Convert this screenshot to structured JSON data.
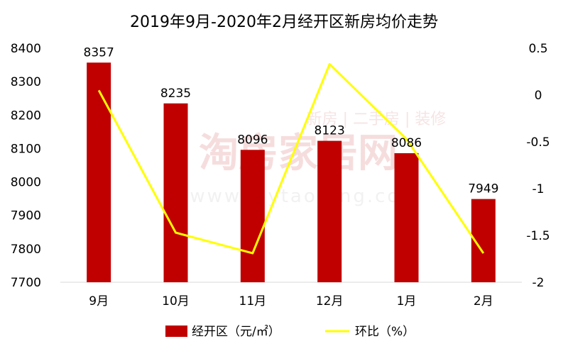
{
  "chart_data": {
    "type": "bar",
    "title": "2019年9月-2020年2月经开区新房均价走势",
    "categories": [
      "9月",
      "10月",
      "11月",
      "12月",
      "1月",
      "2月"
    ],
    "series": [
      {
        "name": "经开区（元/㎡）",
        "type": "bar",
        "axis": "left",
        "color": "#c00000",
        "values": [
          8357,
          8235,
          8096,
          8123,
          8086,
          7949
        ],
        "data_labels": [
          "8357",
          "8235",
          "8096",
          "8123",
          "8086",
          "7949"
        ]
      },
      {
        "name": "环比（%）",
        "type": "line",
        "axis": "right",
        "color": "#ffff00",
        "values": [
          0.05,
          -1.47,
          -1.69,
          0.33,
          -0.47,
          -1.69
        ]
      }
    ],
    "y_left": {
      "ylim": [
        7700,
        8400
      ],
      "ticks": [
        7700,
        7800,
        7900,
        8000,
        8100,
        8200,
        8300,
        8400
      ],
      "tick_labels": [
        "7700",
        "7800",
        "7900",
        "8000",
        "8100",
        "8200",
        "8300",
        "8400"
      ]
    },
    "y_right": {
      "ylim": [
        -2,
        0.5
      ],
      "ticks": [
        -2,
        -1.5,
        -1,
        -0.5,
        0,
        0.5
      ],
      "tick_labels": [
        "-2",
        "-1.5",
        "-1",
        "-0.5",
        "0",
        "0.5"
      ]
    },
    "grid": false,
    "legend_position": "bottom"
  },
  "watermark": {
    "brand": "淘房家居网",
    "tagline": "新房 | 二手房 | 装修",
    "url": "www.mytaofang.com"
  }
}
